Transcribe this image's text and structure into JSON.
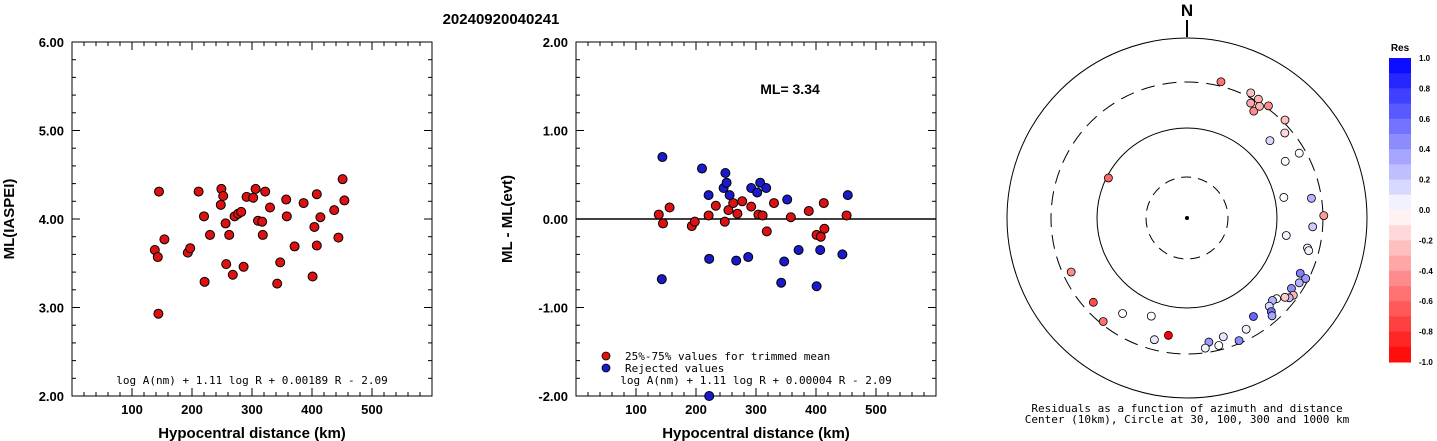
{
  "title": "20240920040241",
  "chart_data": [
    {
      "type": "scatter",
      "id": "left",
      "xlabel": "Hypocentral distance (km)",
      "ylabel": "ML(IASPEI)",
      "xlim": [
        0,
        600
      ],
      "ylim": [
        2.0,
        6.0
      ],
      "xticks": [
        "100",
        "200",
        "300",
        "400",
        "500"
      ],
      "yticks": [
        "2.00",
        "3.00",
        "4.00",
        "5.00",
        "6.00"
      ],
      "formula": "log A(nm) + 1.11 log R + 0.00189 R - 2.09",
      "marker_color": "#dd1111",
      "points": [
        [
          138,
          3.65
        ],
        [
          143,
          3.57
        ],
        [
          145,
          4.31
        ],
        [
          144,
          2.93
        ],
        [
          154,
          3.77
        ],
        [
          193,
          3.62
        ],
        [
          197,
          3.67
        ],
        [
          211,
          4.31
        ],
        [
          220,
          4.03
        ],
        [
          221,
          3.29
        ],
        [
          230,
          3.82
        ],
        [
          248,
          4.16
        ],
        [
          249,
          4.34
        ],
        [
          252,
          4.26
        ],
        [
          256,
          3.95
        ],
        [
          257,
          3.49
        ],
        [
          262,
          3.82
        ],
        [
          268,
          3.37
        ],
        [
          271,
          4.03
        ],
        [
          277,
          4.06
        ],
        [
          282,
          4.08
        ],
        [
          286,
          3.46
        ],
        [
          291,
          4.25
        ],
        [
          302,
          4.24
        ],
        [
          306,
          4.34
        ],
        [
          310,
          3.98
        ],
        [
          317,
          3.97
        ],
        [
          318,
          3.82
        ],
        [
          322,
          4.31
        ],
        [
          330,
          4.13
        ],
        [
          342,
          3.27
        ],
        [
          347,
          3.51
        ],
        [
          358,
          4.03
        ],
        [
          357,
          4.22
        ],
        [
          371,
          3.69
        ],
        [
          386,
          4.18
        ],
        [
          401,
          3.35
        ],
        [
          404,
          3.91
        ],
        [
          408,
          3.7
        ],
        [
          408,
          4.28
        ],
        [
          414,
          4.02
        ],
        [
          437,
          4.1
        ],
        [
          444,
          3.79
        ],
        [
          451,
          4.45
        ],
        [
          454,
          4.21
        ]
      ]
    },
    {
      "type": "scatter",
      "id": "middle",
      "xlabel": "Hypocentral distance (km)",
      "ylabel": "ML - ML(evt)",
      "xlim": [
        0,
        600
      ],
      "ylim": [
        -2.0,
        2.0
      ],
      "xticks": [
        "100",
        "200",
        "300",
        "400",
        "500"
      ],
      "yticks": [
        "-2.00",
        "-1.00",
        "0.00",
        "1.00",
        "2.00"
      ],
      "annotation": "ML= 3.34",
      "formula": "log A(nm) + 1.11 log R + 0.00004 R - 2.09",
      "legend": [
        {
          "label": "25%-75% values for trimmed mean",
          "color": "#dd1111"
        },
        {
          "label": "Rejected values",
          "color": "#1a1acc"
        }
      ],
      "points_used": [
        [
          138,
          0.05
        ],
        [
          145,
          -0.05
        ],
        [
          156,
          0.13
        ],
        [
          193,
          -0.08
        ],
        [
          198,
          -0.03
        ],
        [
          221,
          0.04
        ],
        [
          233,
          0.15
        ],
        [
          248,
          -0.03
        ],
        [
          254,
          0.1
        ],
        [
          262,
          0.18
        ],
        [
          269,
          0.06
        ],
        [
          277,
          0.2
        ],
        [
          292,
          0.14
        ],
        [
          304,
          0.05
        ],
        [
          311,
          0.04
        ],
        [
          318,
          -0.14
        ],
        [
          330,
          0.18
        ],
        [
          358,
          0.02
        ],
        [
          388,
          0.09
        ],
        [
          401,
          -0.18
        ],
        [
          408,
          -0.2
        ],
        [
          413,
          0.18
        ],
        [
          414,
          -0.11
        ],
        [
          451,
          0.04
        ]
      ],
      "points_rejected": [
        [
          144,
          0.7
        ],
        [
          143,
          -0.68
        ],
        [
          210,
          0.57
        ],
        [
          221,
          0.27
        ],
        [
          222,
          -0.45
        ],
        [
          246,
          0.35
        ],
        [
          249,
          0.52
        ],
        [
          251,
          0.41
        ],
        [
          256,
          0.27
        ],
        [
          267,
          -0.47
        ],
        [
          287,
          -0.43
        ],
        [
          292,
          0.35
        ],
        [
          302,
          0.3
        ],
        [
          307,
          0.41
        ],
        [
          317,
          0.35
        ],
        [
          342,
          -0.72
        ],
        [
          347,
          -0.48
        ],
        [
          352,
          0.22
        ],
        [
          371,
          -0.35
        ],
        [
          401,
          -0.76
        ],
        [
          407,
          -0.35
        ],
        [
          444,
          -0.4
        ],
        [
          453,
          0.27
        ],
        [
          222,
          -2.0
        ]
      ],
      "middle_line_label": ""
    },
    {
      "type": "polar-scatter",
      "id": "map",
      "north_label": "N",
      "caption_line1": "Residuals as a function of azimuth and distance",
      "caption_line2": "Center (10km), Circle at 30, 100, 300 and 1000 km",
      "colorbar_title": "Res",
      "colorbar_ticks": [
        "1.0",
        "0.8",
        "0.6",
        "0.4",
        "0.2",
        "0.0",
        "-0.2",
        "-0.4",
        "-0.6",
        "-0.8",
        "-1.0"
      ],
      "points": [
        {
          "az": 14,
          "r": 0.78,
          "res": -0.55
        },
        {
          "az": 27,
          "r": 0.78,
          "res": -0.25
        },
        {
          "az": 29,
          "r": 0.73,
          "res": -0.35
        },
        {
          "az": 31,
          "r": 0.77,
          "res": -0.3
        },
        {
          "az": 32,
          "r": 0.7,
          "res": -0.45
        },
        {
          "az": 33,
          "r": 0.74,
          "res": -0.3
        },
        {
          "az": 36,
          "r": 0.77,
          "res": -0.45
        },
        {
          "az": 45,
          "r": 0.77,
          "res": -0.25
        },
        {
          "az": 47,
          "r": 0.63,
          "res": 0.15
        },
        {
          "az": 49,
          "r": 0.72,
          "res": -0.15
        },
        {
          "az": 60,
          "r": 0.63,
          "res": 0.0
        },
        {
          "az": 60,
          "r": 0.72,
          "res": 0.0
        },
        {
          "az": 78,
          "r": 0.55,
          "res": 0.0
        },
        {
          "az": 81,
          "r": 0.7,
          "res": 0.3
        },
        {
          "az": 89,
          "r": 0.76,
          "res": -0.4
        },
        {
          "az": 94,
          "r": 0.7,
          "res": 0.2
        },
        {
          "az": 100,
          "r": 0.56,
          "res": 0.05
        },
        {
          "az": 104,
          "r": 0.69,
          "res": 0.0
        },
        {
          "az": 105,
          "r": 0.7,
          "res": 0.05
        },
        {
          "az": 116,
          "r": 0.7,
          "res": 0.5
        },
        {
          "az": 117,
          "r": 0.74,
          "res": 0.4
        },
        {
          "az": 120,
          "r": 0.72,
          "res": 0.3
        },
        {
          "az": 124,
          "r": 0.7,
          "res": 0.45
        },
        {
          "az": 126,
          "r": 0.73,
          "res": -0.3
        },
        {
          "az": 128,
          "r": 0.72,
          "res": 0.25
        },
        {
          "az": 129,
          "r": 0.7,
          "res": -0.2
        },
        {
          "az": 132,
          "r": 0.67,
          "res": 0.0
        },
        {
          "az": 134,
          "r": 0.66,
          "res": 0.3
        },
        {
          "az": 137,
          "r": 0.67,
          "res": 0.15
        },
        {
          "az": 138,
          "r": 0.7,
          "res": 0.55
        },
        {
          "az": 139,
          "r": 0.72,
          "res": 0.35
        },
        {
          "az": 146,
          "r": 0.66,
          "res": 0.6
        },
        {
          "az": 152,
          "r": 0.7,
          "res": 0.05
        },
        {
          "az": 157,
          "r": 0.74,
          "res": 0.45
        },
        {
          "az": 163,
          "r": 0.69,
          "res": 0.1
        },
        {
          "az": 166,
          "r": 0.73,
          "res": 0.0
        },
        {
          "az": 170,
          "r": 0.7,
          "res": 0.4
        },
        {
          "az": 172,
          "r": 0.73,
          "res": 0.05
        },
        {
          "az": 189,
          "r": 0.66,
          "res": -1.0
        },
        {
          "az": 195,
          "r": 0.7,
          "res": 0.1
        },
        {
          "az": 200,
          "r": 0.58,
          "res": 0.0
        },
        {
          "az": 214,
          "r": 0.64,
          "res": 0.0
        },
        {
          "az": 219,
          "r": 0.74,
          "res": -0.55
        },
        {
          "az": 228,
          "r": 0.7,
          "res": -0.7
        },
        {
          "az": 245,
          "r": 0.71,
          "res": -0.45
        },
        {
          "az": 297,
          "r": 0.49,
          "res": -0.6
        }
      ]
    }
  ]
}
